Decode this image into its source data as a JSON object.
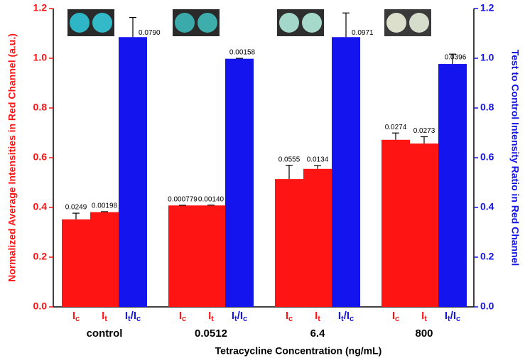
{
  "chart_data": {
    "type": "bar",
    "x_label": "Tetracycline Concentration (ng/mL)",
    "y_label": "Normalized Average Intensities in Red Channel (a.u.)",
    "y2_label": "Test to Control Intensity Ratio in Red Channel",
    "categories": [
      "control",
      "0.0512",
      "6.4",
      "800"
    ],
    "series": [
      {
        "name": "Ic",
        "color": "#ff1414",
        "values": [
          0.352,
          0.408,
          0.514,
          0.672
        ],
        "errors": [
          0.0249,
          0.000779,
          0.0555,
          0.0274
        ],
        "error_labels": [
          "0.0249",
          "0.000779",
          "0.0555",
          "0.0274"
        ]
      },
      {
        "name": "It",
        "color": "#ff1414",
        "values": [
          0.381,
          0.408,
          0.555,
          0.657
        ],
        "errors": [
          0.00198,
          0.0014,
          0.0134,
          0.0273
        ],
        "error_labels": [
          "0.00198",
          "0.00140",
          "0.0134",
          "0.0273"
        ]
      },
      {
        "name": "It/Ic",
        "color": "#1414ee",
        "axis": "y2",
        "values": [
          1.085,
          0.998,
          1.085,
          0.977
        ],
        "errors": [
          0.079,
          0.00158,
          0.0971,
          0.0396
        ],
        "error_labels": [
          "0.0790",
          "0.00158",
          "0.0971",
          "0.0396"
        ]
      }
    ],
    "ylim": [
      0,
      1.2
    ],
    "yticks": [
      {
        "value": 0,
        "label": "0.0"
      },
      {
        "value": 0.2,
        "label": "0.2"
      },
      {
        "value": 0.4,
        "label": "0.4"
      },
      {
        "value": 0.6,
        "label": "0.6"
      },
      {
        "value": 0.8,
        "label": "0.8"
      },
      {
        "value": 1,
        "label": "1.0"
      },
      {
        "value": 1.2,
        "label": "1.2"
      }
    ],
    "y2lim": [
      0,
      1.2
    ],
    "y2ticks": [
      {
        "value": 0,
        "label": "0.0"
      },
      {
        "value": 0.2,
        "label": "0.2"
      },
      {
        "value": 0.4,
        "label": "0.4"
      },
      {
        "value": 0.6,
        "label": "0.6"
      },
      {
        "value": 0.8,
        "label": "0.8"
      },
      {
        "value": 1,
        "label": "1.0"
      },
      {
        "value": 1.2,
        "label": "1.2"
      }
    ]
  }
}
